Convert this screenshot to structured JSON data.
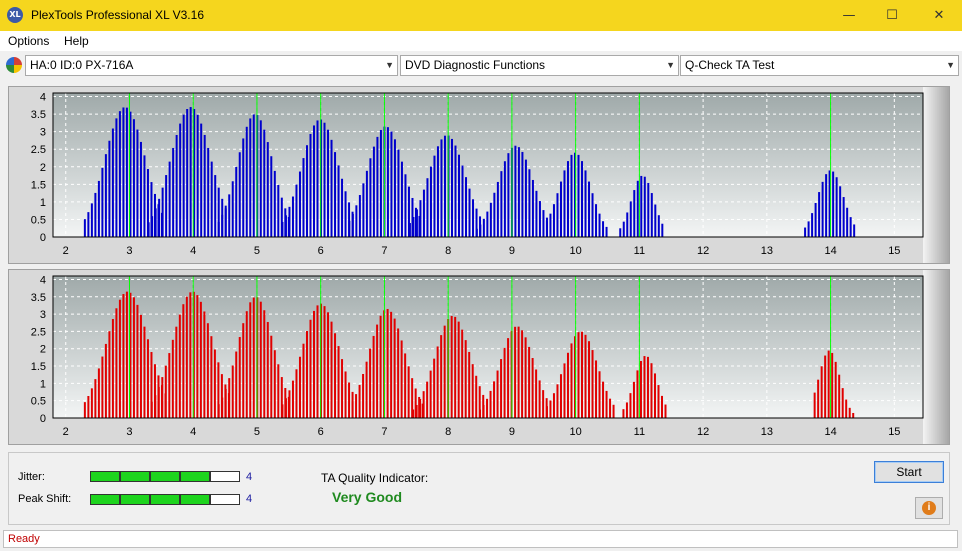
{
  "window": {
    "title": "PlexTools Professional XL V3.16",
    "icon_label": "XL",
    "minimize": "—",
    "maximize": "☐",
    "close": "✕"
  },
  "menu": [
    "Options",
    "Help"
  ],
  "toolbar": {
    "drive": "HA:0 ID:0  PX-716A",
    "function": "DVD Diagnostic Functions",
    "test": "Q-Check TA Test"
  },
  "chart_data": [
    {
      "type": "bar",
      "name": "TA test - upper (blue)",
      "color": "#0000cc",
      "x_ticks": [
        2,
        3,
        4,
        5,
        6,
        7,
        8,
        9,
        10,
        11,
        12,
        13,
        14,
        15
      ],
      "y_ticks": [
        "0",
        "0.5",
        "1",
        "1.5",
        "2",
        "2.5",
        "3",
        "3.5",
        "4"
      ],
      "xlim": [
        1.8,
        15.45
      ],
      "ylim": [
        0,
        4.1
      ],
      "green_markers": [
        3,
        4,
        5,
        6,
        7,
        8,
        9,
        10,
        11,
        14
      ],
      "peaks": [
        {
          "center": 2.93,
          "height": 3.7,
          "from": 2.3,
          "to": 3.55
        },
        {
          "center": 3.96,
          "height": 3.7,
          "from": 3.3,
          "to": 4.55
        },
        {
          "center": 4.97,
          "height": 3.5,
          "from": 4.4,
          "to": 5.5
        },
        {
          "center": 5.99,
          "height": 3.35,
          "from": 5.4,
          "to": 6.55
        },
        {
          "center": 7.02,
          "height": 3.15,
          "from": 6.45,
          "to": 7.6
        },
        {
          "center": 7.98,
          "height": 2.9,
          "from": 7.4,
          "to": 8.55
        },
        {
          "center": 9.06,
          "height": 2.6,
          "from": 8.45,
          "to": 9.55
        },
        {
          "center": 9.99,
          "height": 2.4,
          "from": 9.55,
          "to": 10.5
        },
        {
          "center": 11.05,
          "height": 1.75,
          "from": 10.7,
          "to": 11.4
        },
        {
          "center": 14.0,
          "height": 1.9,
          "from": 13.6,
          "to": 14.4
        }
      ]
    },
    {
      "type": "bar",
      "name": "TA test - lower (red)",
      "color": "#e00000",
      "x_ticks": [
        2,
        3,
        4,
        5,
        6,
        7,
        8,
        9,
        10,
        11,
        12,
        13,
        14,
        15
      ],
      "y_ticks": [
        "0",
        "0.5",
        "1",
        "1.5",
        "2",
        "2.5",
        "3",
        "3.5",
        "4"
      ],
      "xlim": [
        1.8,
        15.45
      ],
      "ylim": [
        0,
        4.1
      ],
      "green_markers": [
        3,
        4,
        5,
        6,
        7,
        8,
        9,
        10,
        11,
        14
      ],
      "peaks": [
        {
          "center": 2.97,
          "height": 3.65,
          "from": 2.3,
          "to": 3.6
        },
        {
          "center": 3.99,
          "height": 3.65,
          "from": 3.35,
          "to": 4.6
        },
        {
          "center": 4.98,
          "height": 3.5,
          "from": 4.4,
          "to": 5.5
        },
        {
          "center": 6.0,
          "height": 3.3,
          "from": 5.4,
          "to": 6.55
        },
        {
          "center": 7.04,
          "height": 3.15,
          "from": 6.5,
          "to": 7.6
        },
        {
          "center": 8.07,
          "height": 2.95,
          "from": 7.45,
          "to": 8.55
        },
        {
          "center": 9.08,
          "height": 2.65,
          "from": 8.5,
          "to": 9.55
        },
        {
          "center": 10.08,
          "height": 2.5,
          "from": 9.55,
          "to": 10.6
        },
        {
          "center": 11.1,
          "height": 1.8,
          "from": 10.75,
          "to": 11.45
        },
        {
          "center": 13.98,
          "height": 1.95,
          "from": 13.75,
          "to": 14.4
        }
      ]
    }
  ],
  "results": {
    "jitter_label": "Jitter:",
    "jitter_value": "4",
    "jitter_level": 4,
    "peak_shift_label": "Peak Shift:",
    "peak_shift_value": "4",
    "peak_shift_level": 4,
    "segments_total": 5,
    "quality_label": "TA Quality Indicator:",
    "quality_value": "Very Good"
  },
  "buttons": {
    "start": "Start",
    "info": "i"
  },
  "status": "Ready"
}
